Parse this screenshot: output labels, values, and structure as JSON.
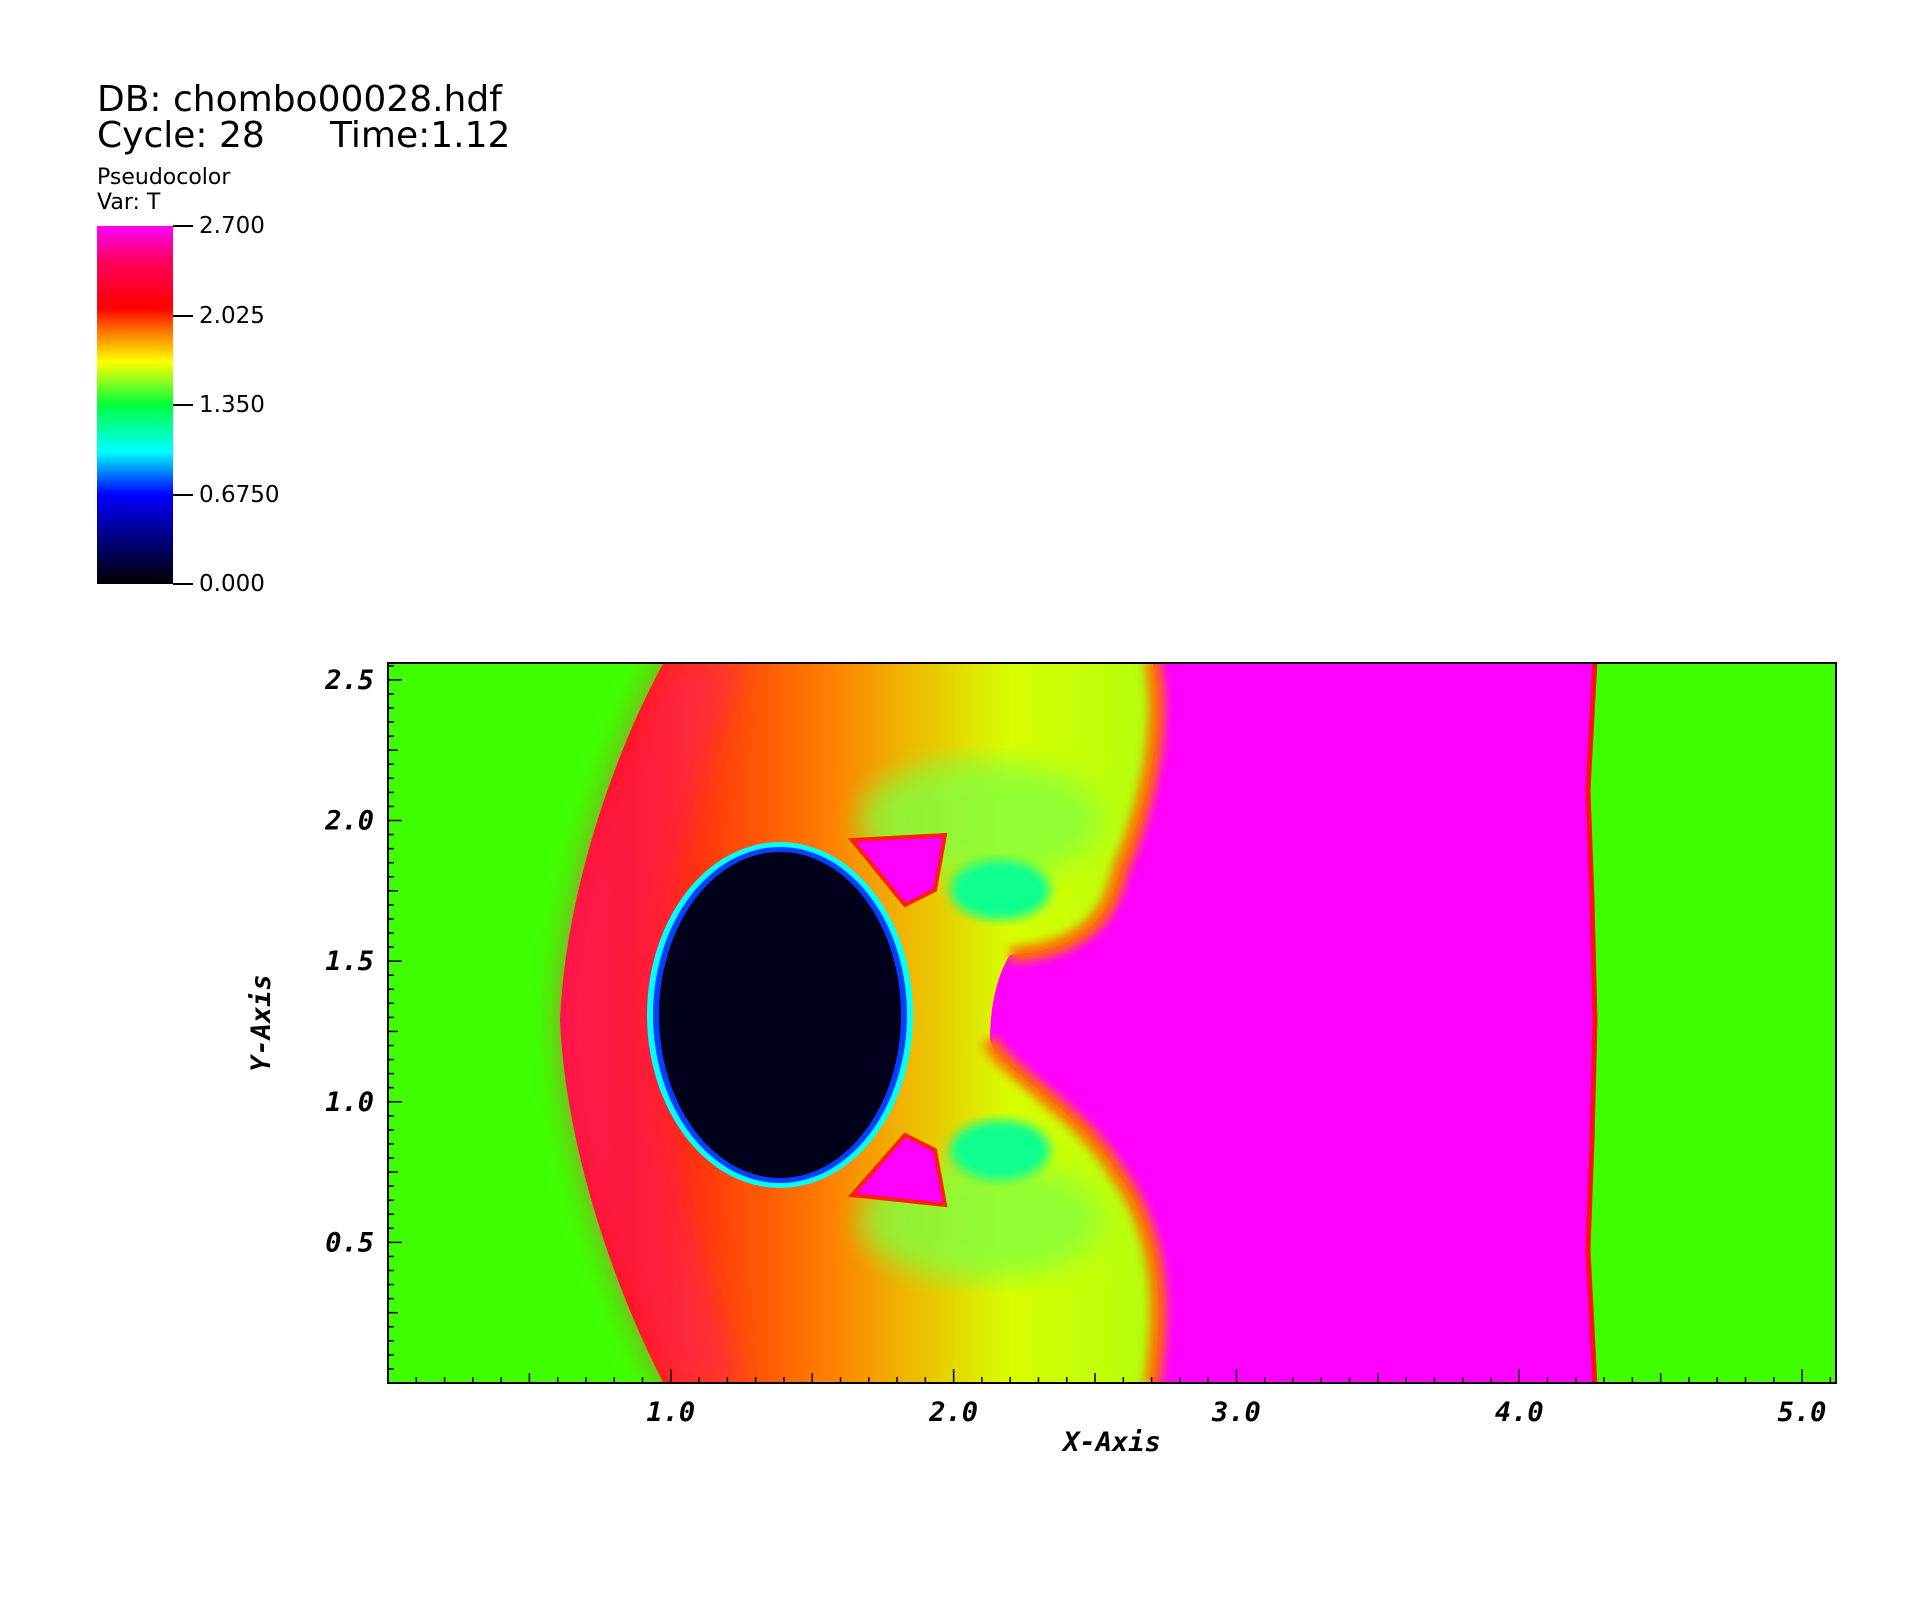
{
  "header": {
    "db_label": "DB: chombo00028.hdf",
    "cycle_label": "Cycle: 28",
    "time_label": "Time:1.12"
  },
  "legend": {
    "plot_type": "Pseudocolor",
    "variable": "Var: T",
    "ticks": [
      {
        "label": "2.700",
        "value": 2.7
      },
      {
        "label": "2.025",
        "value": 2.025
      },
      {
        "label": "1.350",
        "value": 1.35
      },
      {
        "label": "0.6750",
        "value": 0.675
      },
      {
        "label": "0.000",
        "value": 0.0
      }
    ],
    "colormap": [
      "#000000",
      "#0000ff",
      "#00ffff",
      "#00ff3c",
      "#ffff00",
      "#ff7f00",
      "#ff0000",
      "#ff00ff"
    ]
  },
  "chart_data": {
    "type": "heatmap",
    "title": "",
    "xlabel": "X-Axis",
    "ylabel": "Y-Axis",
    "xlim": [
      0.0,
      5.12
    ],
    "ylim": [
      0.0,
      2.56
    ],
    "xticks": [
      {
        "label": "1.0",
        "value": 1.0
      },
      {
        "label": "2.0",
        "value": 2.0
      },
      {
        "label": "3.0",
        "value": 3.0
      },
      {
        "label": "4.0",
        "value": 4.0
      },
      {
        "label": "5.0",
        "value": 5.0
      }
    ],
    "yticks": [
      {
        "label": "0.5",
        "value": 0.5
      },
      {
        "label": "1.0",
        "value": 1.0
      },
      {
        "label": "1.5",
        "value": 1.5
      },
      {
        "label": "2.0",
        "value": 2.0
      },
      {
        "label": "2.5",
        "value": 2.5
      }
    ],
    "value_range": [
      0.0,
      2.7
    ],
    "grid": false,
    "colors": {
      "ambient": "#40ff00",
      "shocked": "#ff00ff",
      "hot_front": "#ff1010",
      "cold_bubble": "#00001a"
    }
  }
}
